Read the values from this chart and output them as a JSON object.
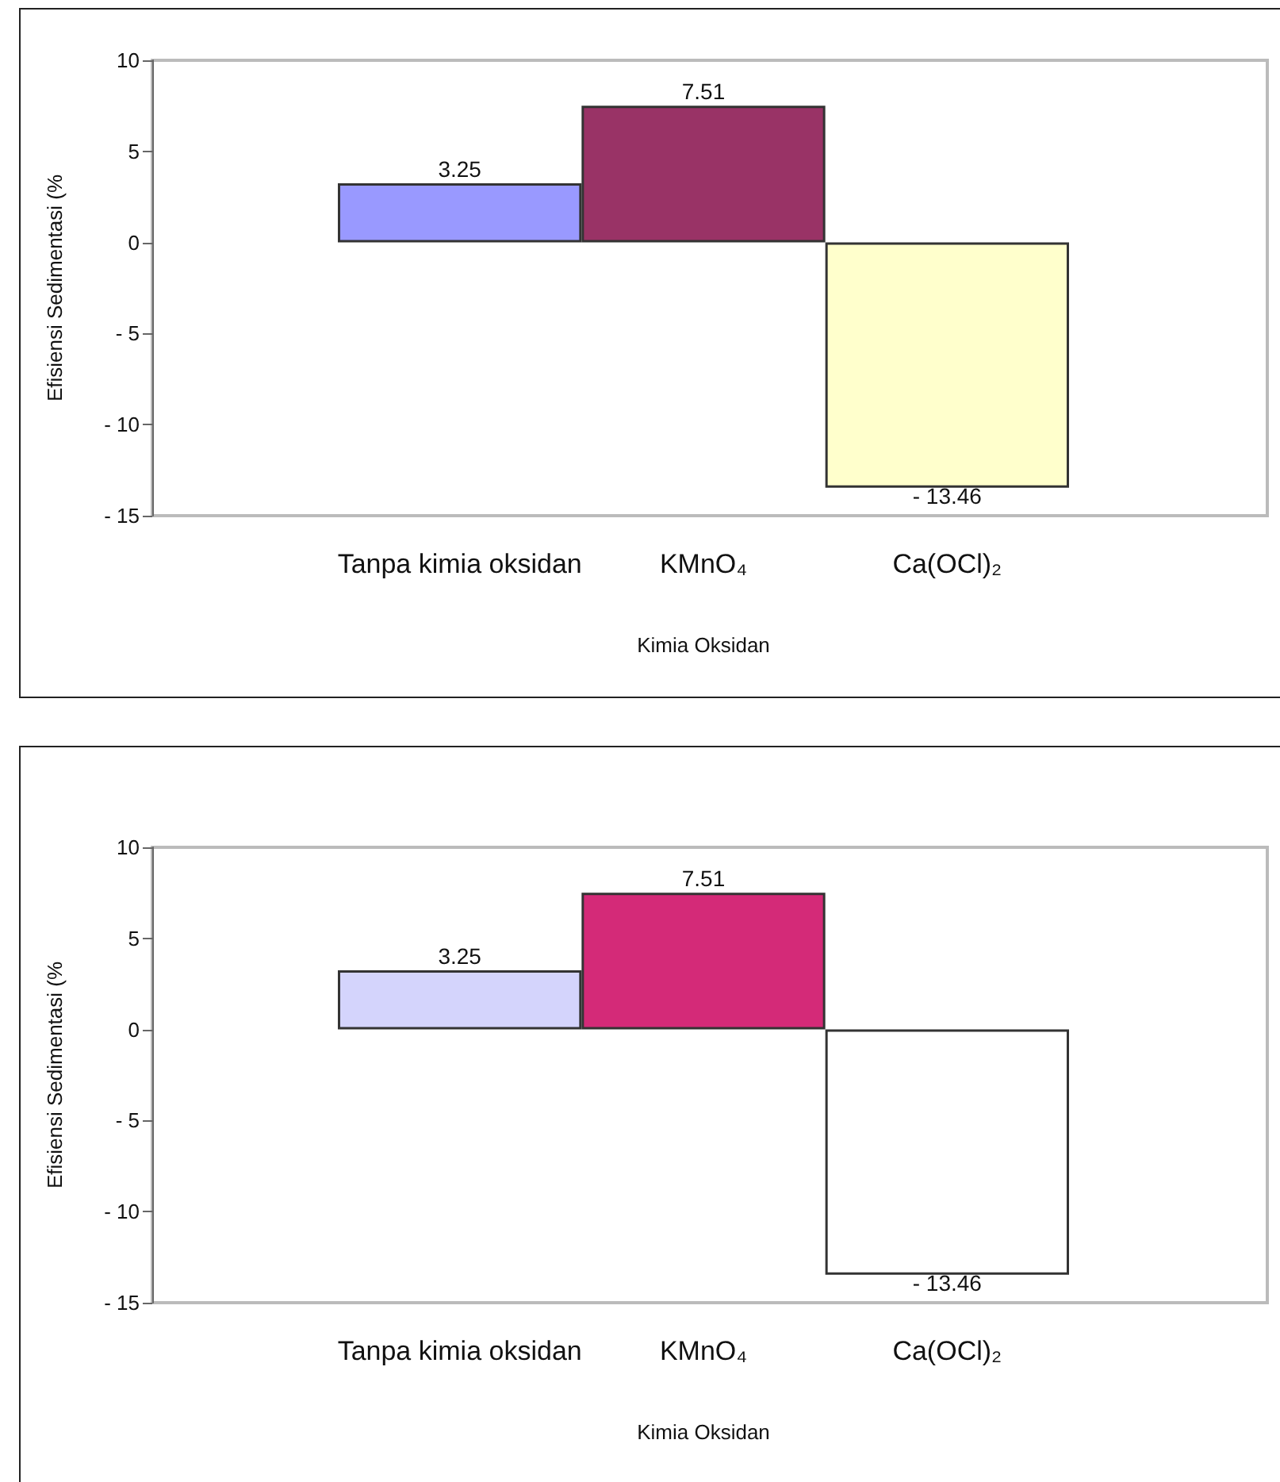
{
  "chart_data": [
    {
      "type": "bar",
      "xlabel": "Kimia Oksidan",
      "ylabel": "Efisiensi Sedimentasi (%",
      "categories": [
        "Tanpa kimia oksidan",
        "KMnO₄",
        "Ca(OCl)₂"
      ],
      "values": [
        3.25,
        7.51,
        -13.46
      ],
      "colors": [
        "#9999ff",
        "#993366",
        "#ffffcc"
      ],
      "ylim": [
        -15,
        10
      ],
      "yticks": [
        -15,
        -10,
        -5,
        0,
        5,
        10
      ],
      "data_labels": true
    },
    {
      "type": "bar",
      "xlabel": "Kimia Oksidan",
      "ylabel": "Efisiensi Sedimentasi (%",
      "categories": [
        "Tanpa kimia oksidan",
        "KMnO₄",
        "Ca(OCl)₂"
      ],
      "values": [
        3.25,
        7.51,
        -13.46
      ],
      "colors": [
        "#d4d4fc",
        "#d42a78",
        "#ffffff"
      ],
      "ylim": [
        -15,
        10
      ],
      "yticks": [
        -15,
        -10,
        -5,
        0,
        5,
        10
      ],
      "data_labels": true
    }
  ]
}
